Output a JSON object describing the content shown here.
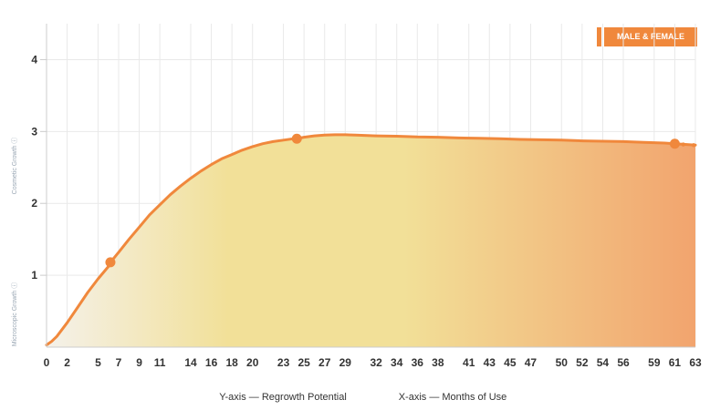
{
  "legend": {
    "button_label": "MALE & FEMALE",
    "accent_color": "#f0883c"
  },
  "chart_data": {
    "type": "area",
    "title": "",
    "xlabel": "X-axis — Months of Use",
    "ylabel": "Y-axis — Regrowth Potential",
    "band_labels": {
      "upper": "Cosmetic Growth ⓘ",
      "lower": "Microscopic Growth ⓘ"
    },
    "xlim": [
      0,
      63
    ],
    "ylim": [
      0,
      4.5
    ],
    "x_ticks": [
      0,
      2,
      5,
      7,
      9,
      11,
      14,
      16,
      18,
      20,
      23,
      25,
      27,
      29,
      32,
      34,
      36,
      38,
      41,
      43,
      45,
      47,
      50,
      52,
      54,
      56,
      59,
      61,
      63
    ],
    "y_ticks": [
      1,
      2,
      3,
      4
    ],
    "grid": true,
    "legend_position": "top-right",
    "colors": {
      "line": "#f0883c",
      "fill_start": "#f4f1ea",
      "fill_mid": "#f2e098",
      "fill_end": "#f2a46e",
      "grid": "#e9e9e9",
      "axis": "#cccccc"
    },
    "series": [
      {
        "x": [
          0,
          0.5,
          1,
          2,
          3,
          4,
          5,
          6,
          6.2,
          7,
          8,
          9,
          10,
          11,
          12,
          13,
          14,
          15,
          16,
          17,
          18,
          19,
          20,
          21,
          22,
          23,
          24,
          24.3,
          25,
          26,
          27,
          28,
          29,
          30,
          32,
          34,
          36,
          38,
          40,
          42,
          44,
          46,
          48,
          50,
          52,
          54,
          56,
          58,
          60,
          61,
          62,
          63
        ],
        "y": [
          0.03,
          0.08,
          0.15,
          0.34,
          0.55,
          0.76,
          0.95,
          1.12,
          1.18,
          1.32,
          1.5,
          1.67,
          1.84,
          1.98,
          2.12,
          2.24,
          2.35,
          2.45,
          2.54,
          2.62,
          2.68,
          2.74,
          2.79,
          2.83,
          2.86,
          2.88,
          2.9,
          2.9,
          2.92,
          2.94,
          2.95,
          2.955,
          2.955,
          2.95,
          2.94,
          2.935,
          2.925,
          2.92,
          2.91,
          2.905,
          2.9,
          2.89,
          2.885,
          2.88,
          2.87,
          2.865,
          2.86,
          2.85,
          2.84,
          2.83,
          2.82,
          2.81
        ]
      }
    ],
    "highlight_points": [
      {
        "x": 6.2,
        "y": 1.18
      },
      {
        "x": 24.3,
        "y": 2.9
      },
      {
        "x": 61,
        "y": 2.83
      }
    ]
  }
}
